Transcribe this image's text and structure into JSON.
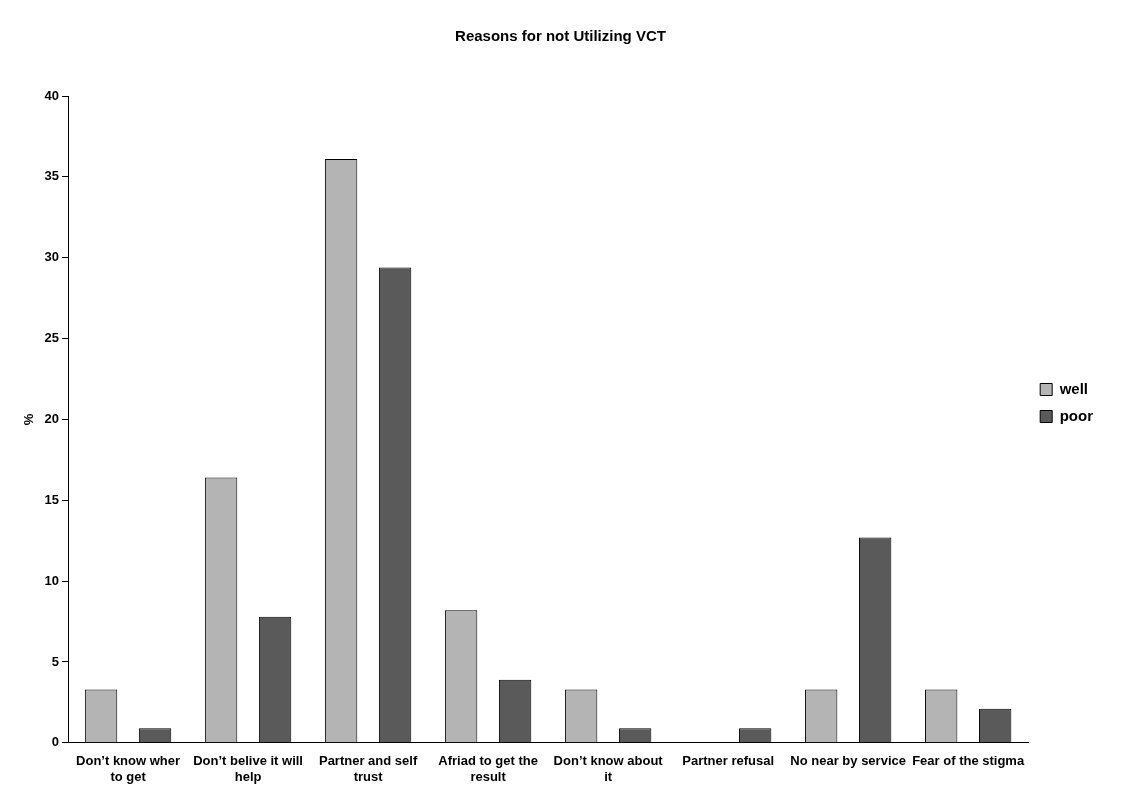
{
  "chart_data": {
    "type": "bar",
    "title": "Reasons for not Utilizing VCT",
    "ylabel": "%",
    "categories": [
      "Don’t know wher to get",
      "Don’t belive it will help",
      "Partner and self trust",
      "Afriad to get the result",
      "Don’t know about it",
      "Partner refusal",
      "No near by service",
      "Fear of the stigma"
    ],
    "series": [
      {
        "name": "well",
        "color": "#b4b4b4",
        "values": [
          3.3,
          16.4,
          36.1,
          8.2,
          3.3,
          0,
          3.3,
          3.3
        ]
      },
      {
        "name": "poor",
        "color": "#5a5a5a",
        "values": [
          0.9,
          7.8,
          29.4,
          3.9,
          0.9,
          0.9,
          12.7,
          2.1
        ]
      }
    ],
    "ylim": [
      0,
      40
    ],
    "yticks": [
      0,
      5,
      10,
      15,
      20,
      25,
      30,
      35,
      40
    ],
    "grid": false,
    "legend": "right"
  }
}
